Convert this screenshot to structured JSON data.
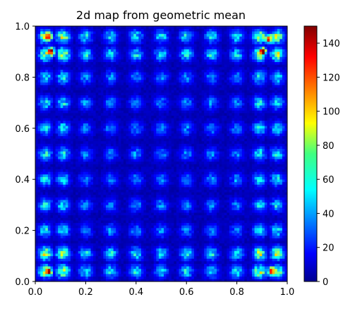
{
  "chart_data": {
    "type": "heatmap",
    "title": "2d map from geometric mean",
    "xlabel": "",
    "ylabel": "",
    "xlim": [
      0.0,
      1.0
    ],
    "ylim": [
      0.0,
      1.0
    ],
    "x_ticks": [
      0.0,
      0.2,
      0.4,
      0.6,
      0.8,
      1.0
    ],
    "y_ticks": [
      0.0,
      0.2,
      0.4,
      0.6,
      0.8,
      1.0
    ],
    "x_tick_labels": [
      "0.0",
      "0.2",
      "0.4",
      "0.6",
      "0.8",
      "1.0"
    ],
    "y_tick_labels": [
      "0.0",
      "0.2",
      "0.4",
      "0.6",
      "0.8",
      "1.0"
    ],
    "colormap": "jet",
    "grid": false,
    "colorbar": {
      "position": "right",
      "min": 0,
      "max": 150,
      "ticks": [
        0,
        20,
        40,
        60,
        80,
        100,
        120,
        140
      ],
      "tick_labels": [
        "0",
        "20",
        "40",
        "60",
        "80",
        "100",
        "120",
        "140"
      ]
    },
    "pattern": {
      "grid_centers": [
        0.04,
        0.11,
        0.2,
        0.3,
        0.4,
        0.5,
        0.6,
        0.7,
        0.8,
        0.89,
        0.96
      ],
      "background_value": 5,
      "blob_peak_interior": 35,
      "blob_peak_edge": 65,
      "corner_hotspot_value": 145
    }
  }
}
